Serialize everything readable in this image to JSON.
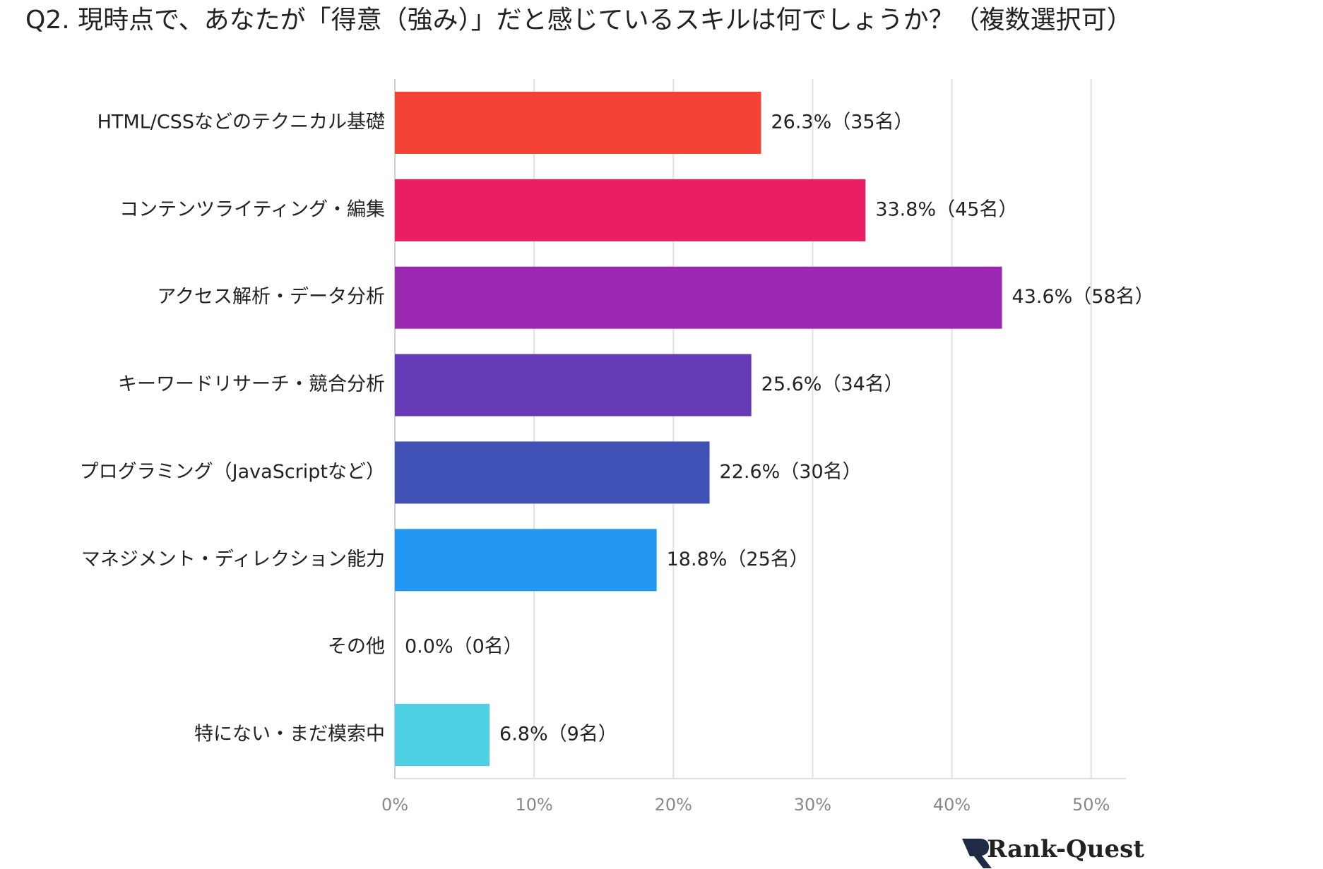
{
  "chart_data": {
    "type": "bar",
    "orientation": "horizontal",
    "title": "Q2. 現時点で、あなたが「得意（強み）」だと感じているスキルは何でしょうか？（複数選択可）",
    "categories": [
      "HTML/CSSなどのテクニカル基礎",
      "コンテンツライティング・編集",
      "アクセス解析・データ分析",
      "キーワードリサーチ・競合分析",
      "プログラミング（JavaScriptなど）",
      "マネジメント・ディレクション能力",
      "その他",
      "特にない・まだ模索中"
    ],
    "values": [
      26.3,
      33.8,
      43.6,
      25.6,
      22.6,
      18.8,
      0.0,
      6.8
    ],
    "value_labels": [
      "26.3%（35名）",
      "33.8%（45名）",
      "43.6%（58名）",
      "25.6%（34名）",
      "22.6%（30名）",
      "18.8%（25名）",
      "0.0%（0名）",
      "6.8%（9名）"
    ],
    "colors": [
      "#f44336",
      "#e91e63",
      "#9c27b0",
      "#673ab7",
      "#3f51b5",
      "#2196f3",
      "#009688",
      "#4dd0e1"
    ],
    "xlim": [
      0,
      52.5
    ],
    "xticks": [
      {
        "value": 0,
        "label": "0%"
      },
      {
        "value": 10,
        "label": "10%"
      },
      {
        "value": 20,
        "label": "20%"
      },
      {
        "value": 30,
        "label": "30%"
      },
      {
        "value": 40,
        "label": "40%"
      },
      {
        "value": 50,
        "label": "50%"
      }
    ],
    "grid": true,
    "logo": "Rank-Quest"
  }
}
